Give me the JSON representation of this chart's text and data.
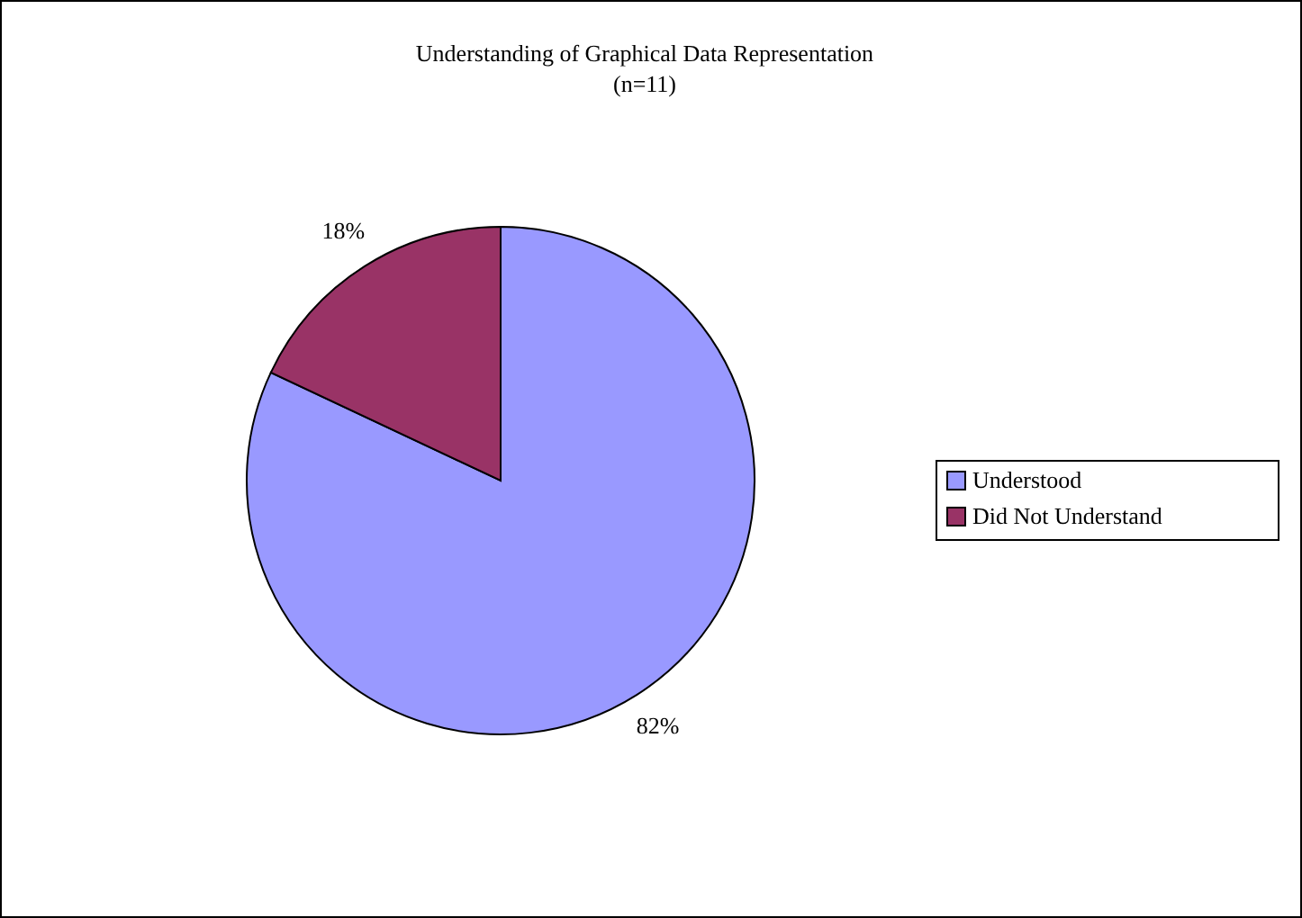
{
  "chart_data": {
    "type": "pie",
    "title": "Understanding of Graphical Data Representation",
    "subtitle": "(n=11)",
    "categories": [
      "Understood",
      "Did Not Understand"
    ],
    "values": [
      82,
      18
    ],
    "colors": [
      "#9999ff",
      "#993366"
    ],
    "value_labels": [
      "82%",
      "18%"
    ],
    "legend": "right"
  }
}
